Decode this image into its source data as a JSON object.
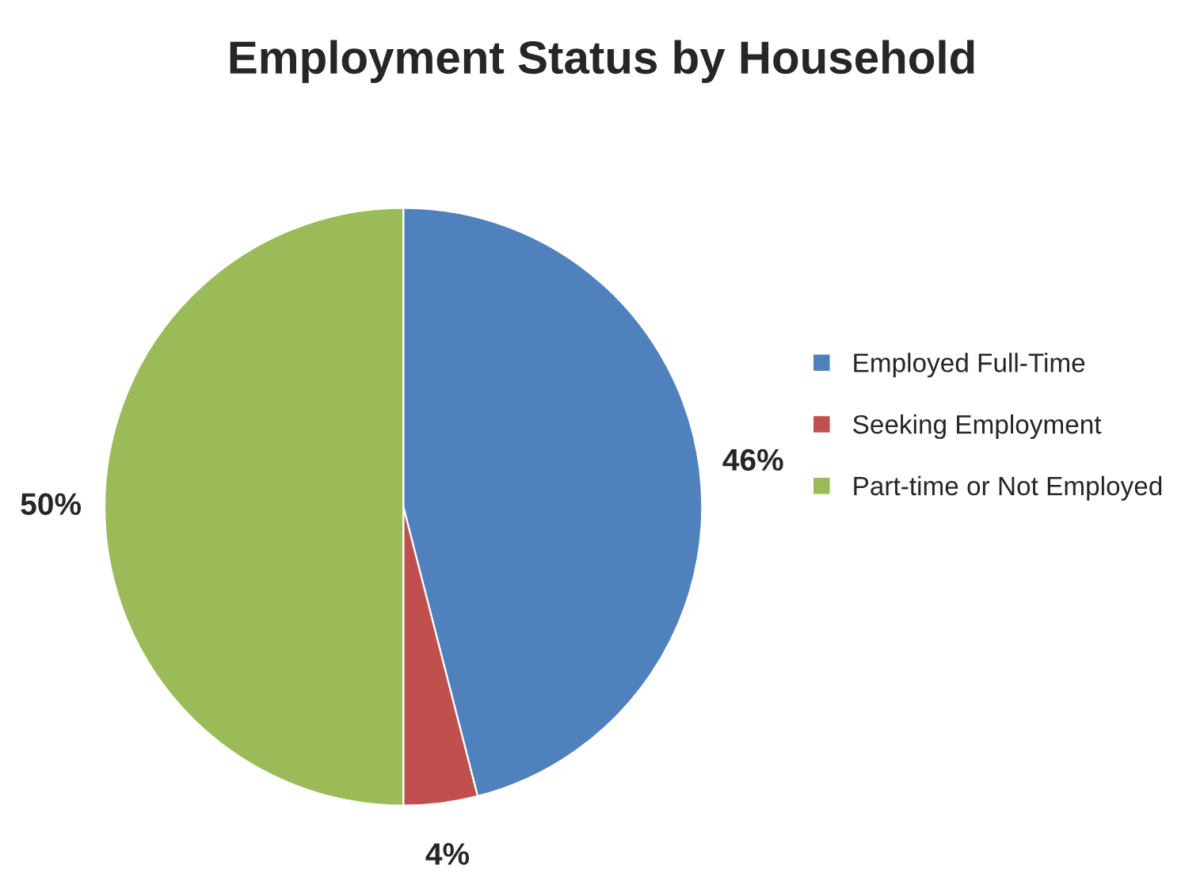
{
  "chart_data": {
    "type": "pie",
    "title": "Employment Status by Household",
    "categories": [
      "Employed Full-Time",
      "Seeking Employment",
      "Part-time or Not Employed"
    ],
    "values": [
      46,
      4,
      50
    ],
    "colors": [
      "#4f81bd",
      "#c0504d",
      "#9bbb59"
    ],
    "value_labels": [
      "46%",
      "4%",
      "50%"
    ],
    "legend": "right"
  }
}
